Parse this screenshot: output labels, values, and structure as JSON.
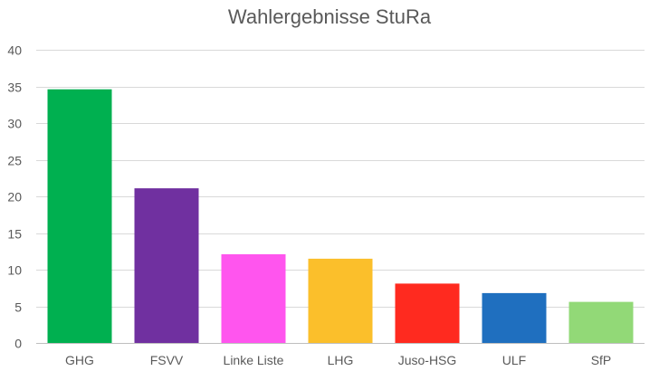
{
  "chart_data": {
    "type": "bar",
    "title": "Wahlergebnisse StuRa",
    "xlabel": "",
    "ylabel": "",
    "ylim": [
      0,
      40
    ],
    "yticks": [
      0,
      5,
      10,
      15,
      20,
      25,
      30,
      35,
      40
    ],
    "grid": true,
    "legend": "none",
    "categories": [
      "GHG",
      "FSVV",
      "Linke Liste",
      "LHG",
      "Juso-HSG",
      "ULF",
      "SfP"
    ],
    "values": [
      34.6,
      21.1,
      12.1,
      11.5,
      8.1,
      6.8,
      5.6
    ],
    "colors": [
      "#00b050",
      "#7030a0",
      "#ff55ee",
      "#fbbf2b",
      "#ff2a1f",
      "#1f6fbf",
      "#92d977"
    ]
  }
}
